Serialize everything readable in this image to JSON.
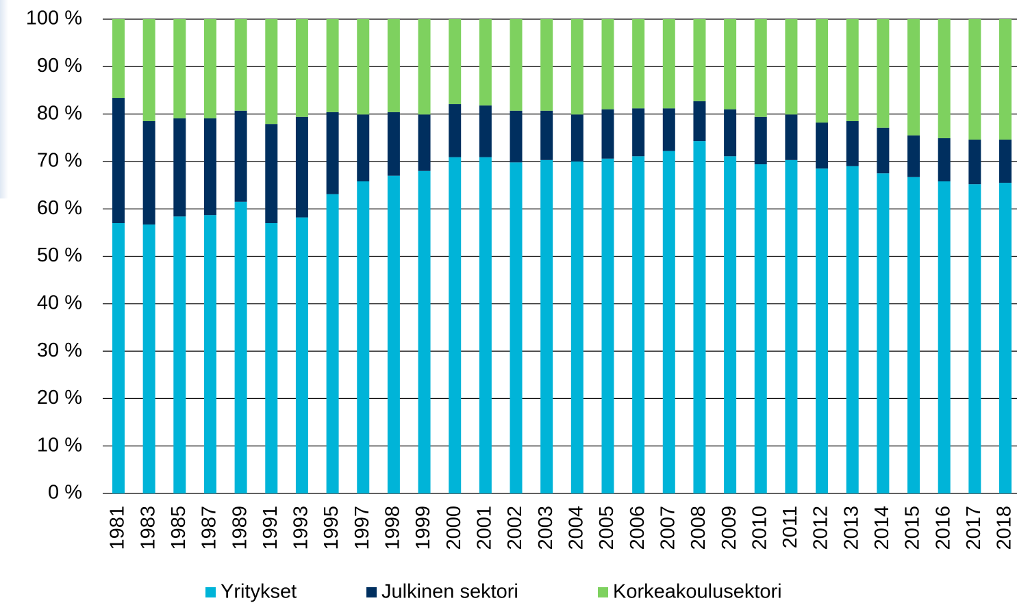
{
  "chart_data": {
    "type": "stacked_bar",
    "categories": [
      "1981",
      "1983",
      "1985",
      "1987",
      "1989",
      "1991",
      "1993",
      "1995",
      "1997",
      "1998",
      "1999",
      "2000",
      "2001",
      "2002",
      "2003",
      "2004",
      "2005",
      "2006",
      "2007",
      "2008",
      "2009",
      "2010",
      "2011",
      "2012",
      "2013",
      "2014",
      "2015",
      "2016",
      "2017",
      "2018"
    ],
    "series": [
      {
        "name": "Yritykset",
        "color": "#00b4d8",
        "values": [
          57.0,
          56.7,
          58.4,
          58.7,
          61.5,
          57.0,
          58.2,
          63.1,
          65.8,
          67.0,
          68.0,
          70.9,
          70.9,
          69.8,
          70.3,
          70.0,
          70.6,
          71.1,
          72.2,
          74.3,
          71.1,
          69.4,
          70.3,
          68.5,
          69.0,
          67.5,
          66.7,
          65.8,
          65.2,
          65.5
        ]
      },
      {
        "name": "Julkinen sektori",
        "color": "#002f5f",
        "values": [
          26.4,
          21.8,
          20.7,
          20.4,
          19.2,
          20.9,
          21.2,
          17.3,
          14.1,
          13.4,
          11.9,
          11.2,
          10.9,
          10.9,
          10.4,
          9.9,
          10.4,
          10.1,
          9.0,
          8.4,
          9.9,
          10.0,
          9.6,
          9.7,
          9.5,
          9.6,
          8.8,
          9.1,
          9.4,
          9.1
        ]
      },
      {
        "name": "Korkeakoulusektori",
        "color": "#7ed15f",
        "values": [
          16.6,
          21.5,
          20.9,
          20.9,
          19.3,
          22.1,
          20.6,
          19.6,
          20.1,
          19.6,
          20.1,
          17.9,
          18.2,
          19.3,
          19.3,
          20.1,
          19.0,
          18.8,
          18.8,
          17.3,
          19.0,
          20.6,
          20.1,
          21.8,
          21.5,
          22.9,
          24.5,
          25.1,
          25.4,
          25.4
        ]
      }
    ],
    "ylim": [
      0,
      100
    ],
    "yticks": [
      {
        "value": 0,
        "label": "0 %"
      },
      {
        "value": 10,
        "label": "10 %"
      },
      {
        "value": 20,
        "label": "20 %"
      },
      {
        "value": 30,
        "label": "30 %"
      },
      {
        "value": 40,
        "label": "40 %"
      },
      {
        "value": 50,
        "label": "50 %"
      },
      {
        "value": 60,
        "label": "60 %"
      },
      {
        "value": 70,
        "label": "70 %"
      },
      {
        "value": 80,
        "label": "80 %"
      },
      {
        "value": 90,
        "label": "90 %"
      },
      {
        "value": 100,
        "label": "100 %"
      }
    ],
    "grid": true,
    "legend": "bottom"
  }
}
